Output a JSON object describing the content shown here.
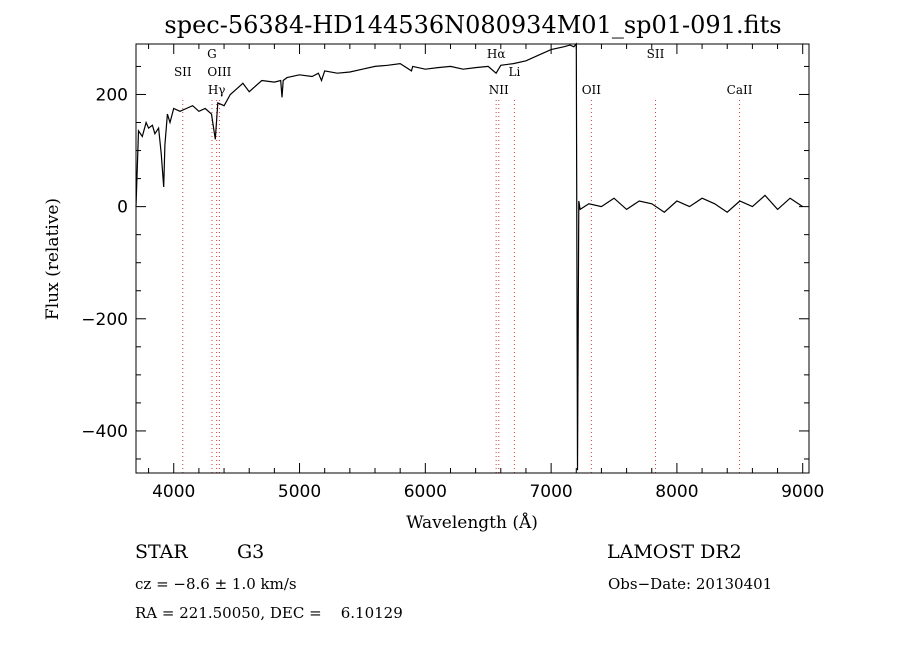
{
  "chart_data": {
    "type": "line",
    "title": "spec-56384-HD144536N080934M01_sp01-091.fits",
    "xlabel": "Wavelength (Å)",
    "ylabel": "Flux (relative)",
    "xlim": [
      3700,
      9050
    ],
    "ylim": [
      -475,
      290
    ],
    "xticks": [
      4000,
      5000,
      6000,
      7000,
      8000,
      9000
    ],
    "yticks": [
      -400,
      -200,
      0,
      200
    ],
    "grid": false,
    "series": [
      {
        "x": [
          3700,
          3720,
          3750,
          3780,
          3800,
          3830,
          3850,
          3880,
          3900,
          3920,
          3930,
          3950,
          3970,
          4000,
          4050,
          4100,
          4150,
          4200,
          4250,
          4300,
          4330,
          4350,
          4400,
          4450,
          4500,
          4550,
          4600,
          4700,
          4800,
          4850,
          4861,
          4870,
          4900,
          5000,
          5100,
          5150,
          5175,
          5200,
          5300,
          5400,
          5500,
          5600,
          5700,
          5800,
          5890,
          5900,
          6000,
          6100,
          6200,
          6300,
          6400,
          6500,
          6563,
          6600,
          6700,
          6800,
          6900,
          7000,
          7100,
          7150,
          7180,
          7200,
          7210,
          7220,
          7230,
          7300,
          7400,
          7500,
          7600,
          7700,
          7800,
          7900,
          8000,
          8100,
          8200,
          8300,
          8400,
          8500,
          8600,
          8700,
          8800,
          8900,
          9000
        ],
        "y": [
          0,
          135,
          125,
          150,
          140,
          145,
          130,
          140,
          95,
          35,
          110,
          165,
          150,
          175,
          170,
          175,
          180,
          170,
          175,
          165,
          120,
          185,
          180,
          200,
          210,
          220,
          205,
          225,
          222,
          225,
          195,
          225,
          230,
          235,
          232,
          238,
          225,
          242,
          238,
          240,
          245,
          250,
          252,
          255,
          242,
          250,
          245,
          248,
          250,
          245,
          248,
          250,
          238,
          252,
          255,
          260,
          270,
          280,
          285,
          288,
          285,
          290,
          -470,
          10,
          -5,
          5,
          0,
          15,
          -5,
          10,
          5,
          -10,
          10,
          0,
          15,
          5,
          -10,
          10,
          0,
          20,
          -5,
          15,
          0
        ]
      }
    ],
    "lines": [
      {
        "label": "SII",
        "x": 4072
      },
      {
        "label": "G",
        "x": 4304
      },
      {
        "label": "OIII",
        "x": 4363
      },
      {
        "label": "Hγ",
        "x": 4341
      },
      {
        "label": "Hα",
        "x": 6563
      },
      {
        "label": "NII",
        "x": 6584
      },
      {
        "label": "Li",
        "x": 6708
      },
      {
        "label": "OII",
        "x": 7320
      },
      {
        "label": "SII",
        "x": 7830
      },
      {
        "label": "CaII",
        "x": 8498
      }
    ],
    "colors": {
      "spectrum": "#000000",
      "line_markers": "#d23c3c",
      "axes": "#000000"
    }
  },
  "info": {
    "object_class": "STAR",
    "subclass": "G3",
    "survey": "LAMOST DR2",
    "cz": "cz = −8.6 ± 1.0 km/s",
    "obs_date": "Obs−Date: 20130401",
    "radec": "RA = 221.50050, DEC =    6.10129"
  }
}
